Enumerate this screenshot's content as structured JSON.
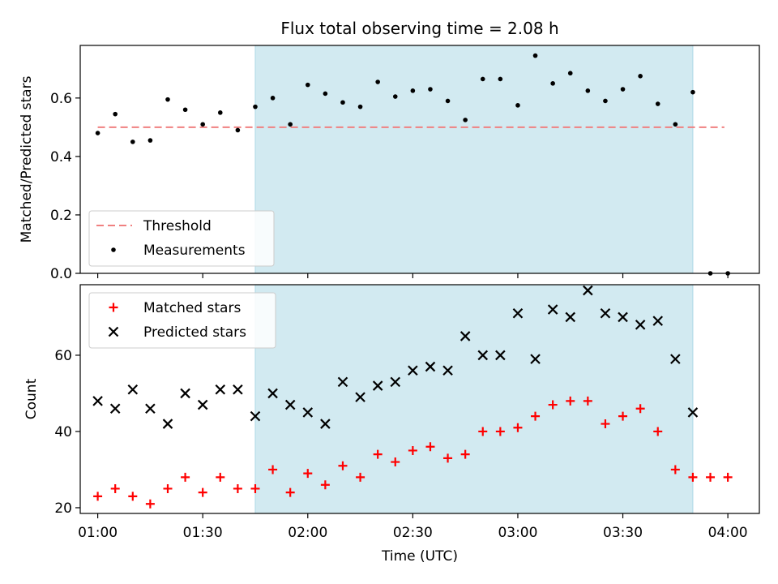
{
  "chart_data": [
    {
      "type": "scatter",
      "title": "Flux total observing time = 2.08 h",
      "xlabel": "",
      "ylabel": "Matched/Predicted stars",
      "xlim": [
        "00:55",
        "04:09"
      ],
      "ylim": [
        0,
        0.78
      ],
      "xticks": [
        "01:00",
        "01:30",
        "02:00",
        "02:30",
        "03:00",
        "03:30",
        "04:00"
      ],
      "yticks": [
        "0.0",
        "0.2",
        "0.4",
        "0.6"
      ],
      "ytick_values": [
        0,
        0.2,
        0.4,
        0.6
      ],
      "x_tick_labels_shown": false,
      "shaded_span": [
        "01:45",
        "03:50"
      ],
      "shade_color": "#add8e6",
      "threshold": {
        "name": "Threshold",
        "value": 0.5,
        "x_start": "01:00",
        "x_end": "03:59",
        "color": "#f08080"
      },
      "series": [
        {
          "name": "Measurements",
          "marker": "dot",
          "color": "#000000",
          "x": [
            "01:00",
            "01:05",
            "01:10",
            "01:15",
            "01:20",
            "01:25",
            "01:30",
            "01:35",
            "01:40",
            "01:45",
            "01:50",
            "01:55",
            "02:00",
            "02:05",
            "02:10",
            "02:15",
            "02:20",
            "02:25",
            "02:30",
            "02:35",
            "02:40",
            "02:45",
            "02:50",
            "02:55",
            "03:00",
            "03:05",
            "03:10",
            "03:15",
            "03:20",
            "03:25",
            "03:30",
            "03:35",
            "03:40",
            "03:45",
            "03:50",
            "03:55",
            "04:00"
          ],
          "y": [
            0.48,
            0.545,
            0.45,
            0.455,
            0.595,
            0.56,
            0.51,
            0.55,
            0.49,
            0.57,
            0.6,
            0.51,
            0.645,
            0.615,
            0.585,
            0.57,
            0.655,
            0.605,
            0.625,
            0.63,
            0.59,
            0.525,
            0.665,
            0.665,
            0.575,
            0.745,
            0.65,
            0.685,
            0.625,
            0.59,
            0.63,
            0.675,
            0.58,
            0.51,
            0.62,
            0.0,
            0.0
          ]
        }
      ],
      "legend": {
        "placement": "lower-left",
        "entries": [
          "Threshold",
          "Measurements"
        ]
      },
      "grid": false
    },
    {
      "type": "scatter",
      "title": "",
      "xlabel": "Time (UTC)",
      "ylabel": "Count",
      "xlim": [
        "00:55",
        "04:09"
      ],
      "ylim": [
        18.5,
        78.5
      ],
      "xticks": [
        "01:00",
        "01:30",
        "02:00",
        "02:30",
        "03:00",
        "03:30",
        "04:00"
      ],
      "yticks": [
        "20",
        "40",
        "60"
      ],
      "ytick_values": [
        20,
        40,
        60
      ],
      "x_tick_labels_shown": true,
      "shaded_span": [
        "01:45",
        "03:50"
      ],
      "shade_color": "#add8e6",
      "series": [
        {
          "name": "Matched stars",
          "marker": "plus",
          "color": "#ff0000",
          "x": [
            "01:00",
            "01:05",
            "01:10",
            "01:15",
            "01:20",
            "01:25",
            "01:30",
            "01:35",
            "01:40",
            "01:45",
            "01:50",
            "01:55",
            "02:00",
            "02:05",
            "02:10",
            "02:15",
            "02:20",
            "02:25",
            "02:30",
            "02:35",
            "02:40",
            "02:45",
            "02:50",
            "02:55",
            "03:00",
            "03:05",
            "03:10",
            "03:15",
            "03:20",
            "03:25",
            "03:30",
            "03:35",
            "03:40",
            "03:45",
            "03:50",
            "03:55",
            "04:00"
          ],
          "y": [
            23,
            25,
            23,
            21,
            25,
            28,
            24,
            28,
            25,
            25,
            30,
            24,
            29,
            26,
            31,
            28,
            34,
            32,
            35,
            36,
            33,
            34,
            40,
            40,
            41,
            44,
            47,
            48,
            48,
            42,
            44,
            46,
            40,
            30,
            28,
            28,
            28
          ]
        },
        {
          "name": "Predicted stars",
          "marker": "x",
          "color": "#000000",
          "x": [
            "01:00",
            "01:05",
            "01:10",
            "01:15",
            "01:20",
            "01:25",
            "01:30",
            "01:35",
            "01:40",
            "01:45",
            "01:50",
            "01:55",
            "02:00",
            "02:05",
            "02:10",
            "02:15",
            "02:20",
            "02:25",
            "02:30",
            "02:35",
            "02:40",
            "02:45",
            "02:50",
            "02:55",
            "03:00",
            "03:05",
            "03:10",
            "03:15",
            "03:20",
            "03:25",
            "03:30",
            "03:35",
            "03:40",
            "03:45",
            "03:50"
          ],
          "y": [
            48,
            46,
            51,
            46,
            42,
            50,
            47,
            51,
            51,
            44,
            50,
            47,
            45,
            42,
            53,
            49,
            52,
            53,
            56,
            57,
            56,
            65,
            60,
            60,
            71,
            59,
            72,
            70,
            77,
            71,
            70,
            68,
            69,
            59,
            45
          ]
        }
      ],
      "legend": {
        "placement": "upper-left",
        "entries": [
          "Matched stars",
          "Predicted stars"
        ]
      },
      "grid": false
    }
  ]
}
